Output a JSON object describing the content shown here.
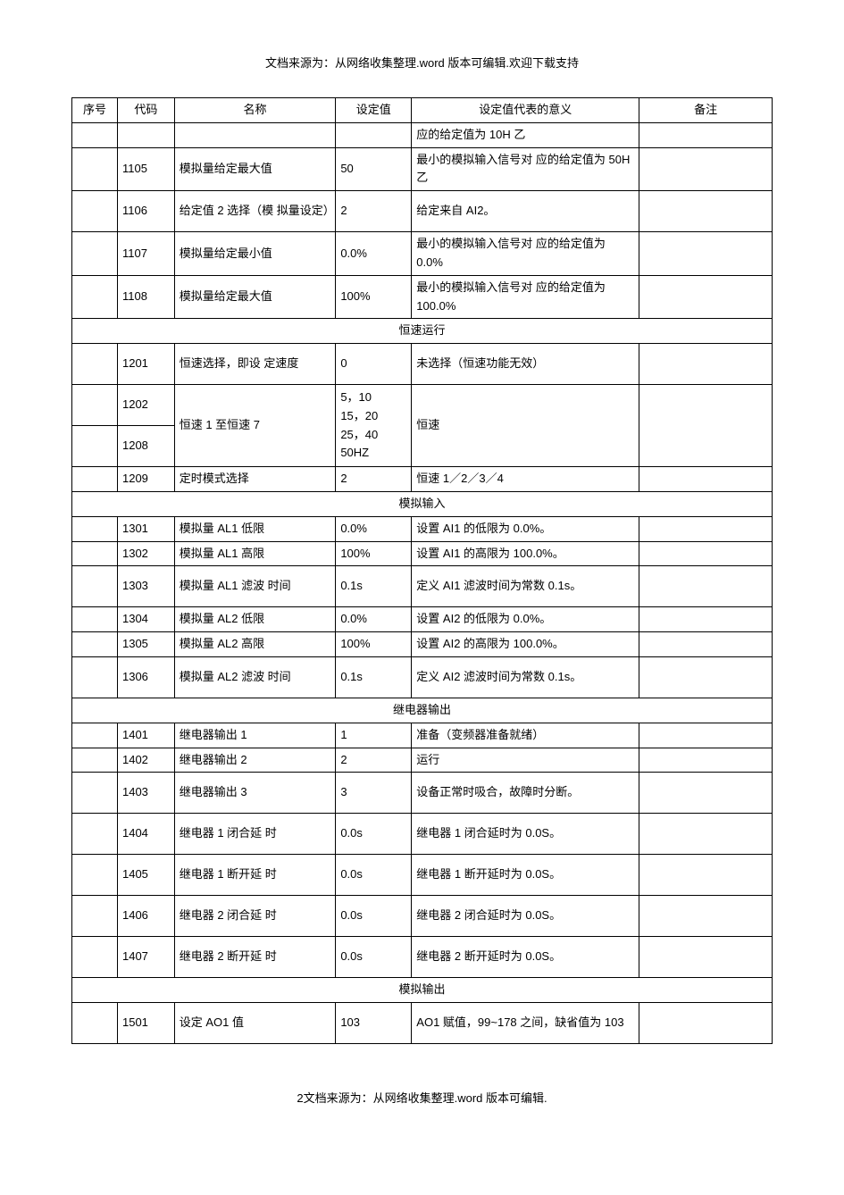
{
  "topNote": "文档来源为：从网络收集整理.word 版本可编辑.欢迎下载支持",
  "footerNote": "2文档来源为：从网络收集整理.word 版本可编辑.",
  "columns": {
    "seq": "序号",
    "code": "代码",
    "name": "名称",
    "val": "设定值",
    "mean": "设定值代表的意义",
    "note": "备注"
  },
  "leadRow": {
    "mean": "应的给定值为 10H 乙"
  },
  "g1": [
    {
      "code": "1105",
      "name": "模拟量给定最大值",
      "val": "50",
      "mean": "最小的模拟输入信号对 应的给定值为 50H 乙",
      "h": "tall"
    },
    {
      "code": "1106",
      "name": "给定值 2 选择（模 拟量设定）",
      "val": "2",
      "mean": "给定来自 AI2。",
      "h": "tall"
    },
    {
      "code": "1107",
      "name": "模拟量给定最小值",
      "val": "0.0%",
      "mean": "最小的模拟输入信号对 应的给定值为 0.0%",
      "h": "tall"
    },
    {
      "code": "1108",
      "name": "模拟量给定最大值",
      "val": "100%",
      "mean": "最小的模拟输入信号对 应的给定值为 100.0%",
      "h": "tall"
    }
  ],
  "sec1": "恒速运行",
  "g2": [
    {
      "code": "1201",
      "name": "恒速选择，即设 定速度",
      "val": "0",
      "mean": "未选择（恒速功能无效）",
      "h": "tall"
    }
  ],
  "g2merge": {
    "code1": "1202",
    "code2": "1208",
    "name": "恒速 1 至恒速 7",
    "val": "5，10\n15，20\n25，40\n50HZ",
    "mean": "恒速"
  },
  "g2b": [
    {
      "code": "1209",
      "name": "定时模式选择",
      "val": "2",
      "mean": "恒速 1／2／3／4"
    }
  ],
  "sec2": "模拟输入",
  "g3": [
    {
      "code": "1301",
      "name": "模拟量 AL1 低限",
      "val": "0.0%",
      "mean": "设置 AI1 的低限为 0.0%。"
    },
    {
      "code": "1302",
      "name": "模拟量 AL1 高限",
      "val": "100%",
      "mean": "设置 AI1 的高限为 100.0%。"
    },
    {
      "code": "1303",
      "name": "模拟量 AL1 滤波 时间",
      "val": "0.1s",
      "mean": "定义 AI1 滤波时间为常数 0.1s。",
      "h": "tall"
    },
    {
      "code": "1304",
      "name": "模拟量 AL2 低限",
      "val": "0.0%",
      "mean": "设置 AI2 的低限为 0.0%。"
    },
    {
      "code": "1305",
      "name": "模拟量 AL2 高限",
      "val": "100%",
      "mean": "设置 AI2 的高限为 100.0%。"
    },
    {
      "code": "1306",
      "name": "模拟量 AL2 滤波 时间",
      "val": "0.1s",
      "mean": "定义 AI2 滤波时间为常数 0.1s。",
      "h": "tall"
    }
  ],
  "sec3": "继电器输出",
  "g4": [
    {
      "code": "1401",
      "name": "继电器输出 1",
      "val": "1",
      "mean": "准备（变频器准备就绪）"
    },
    {
      "code": "1402",
      "name": "继电器输出 2",
      "val": "2",
      "mean": "运行"
    },
    {
      "code": "1403",
      "name": "继电器输出 3",
      "val": "3",
      "mean": "设备正常时吸合，故障时分断。",
      "h": "tall"
    },
    {
      "code": "1404",
      "name": "继电器 1 闭合延 时",
      "val": "0.0s",
      "mean": "继电器 1 闭合延时为 0.0S。",
      "h": "tall"
    },
    {
      "code": "1405",
      "name": "继电器 1 断开延 时",
      "val": "0.0s",
      "mean": "继电器 1 断开延时为 0.0S。",
      "h": "tall"
    },
    {
      "code": "1406",
      "name": "继电器 2 闭合延 时",
      "val": "0.0s",
      "mean": "继电器 2 闭合延时为 0.0S。",
      "h": "tall"
    },
    {
      "code": "1407",
      "name": "继电器 2 断开延 时",
      "val": "0.0s",
      "mean": "继电器 2 断开延时为 0.0S。",
      "h": "tall"
    }
  ],
  "sec4": "模拟输出",
  "g5": [
    {
      "code": "1501",
      "name": "设定 AO1 值",
      "val": "103",
      "mean": "AO1 赋值，99~178 之间，缺省值为 103",
      "h": "tall"
    }
  ]
}
